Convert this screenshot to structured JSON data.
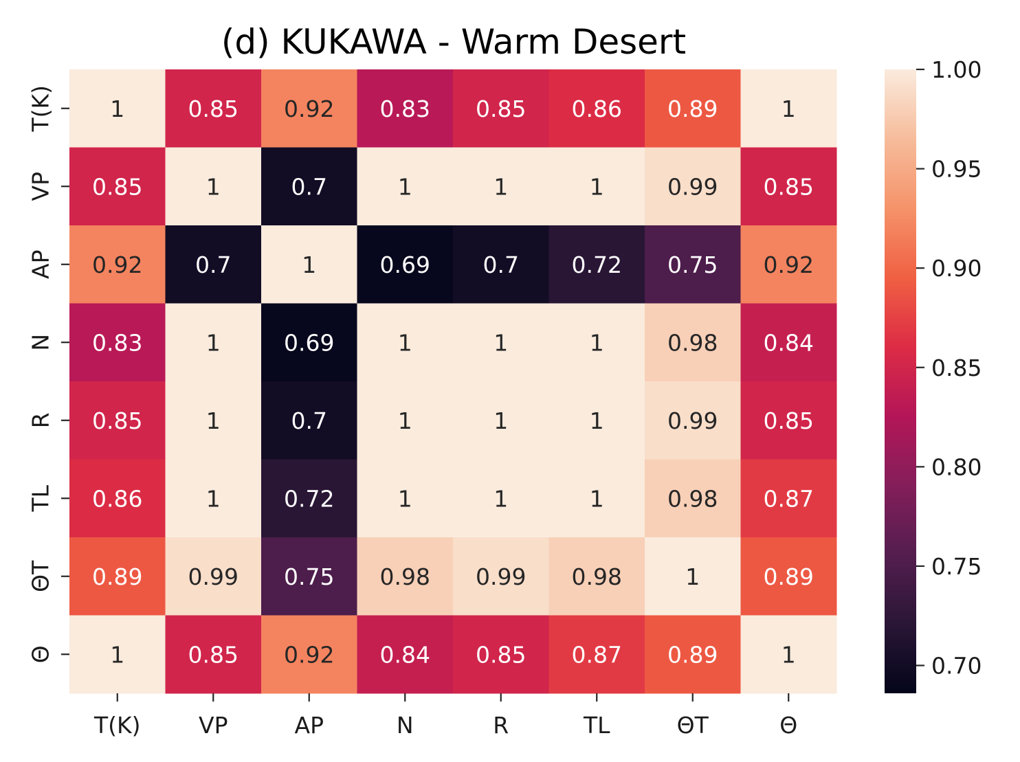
{
  "chart_data": {
    "type": "heatmap",
    "title": "(d) KUKAWA - Warm Desert",
    "xlabel": "",
    "ylabel": "",
    "x_categories": [
      "T(K)",
      "VP",
      "AP",
      "N",
      "R",
      "TL",
      "ΘT",
      "Θ"
    ],
    "y_categories": [
      "T(K)",
      "VP",
      "AP",
      "N",
      "R",
      "TL",
      "ΘT",
      "Θ"
    ],
    "values": [
      [
        1.0,
        0.85,
        0.92,
        0.83,
        0.85,
        0.86,
        0.89,
        1.0
      ],
      [
        0.85,
        1.0,
        0.7,
        1.0,
        1.0,
        1.0,
        0.99,
        0.85
      ],
      [
        0.92,
        0.7,
        1.0,
        0.69,
        0.7,
        0.72,
        0.75,
        0.92
      ],
      [
        0.83,
        1.0,
        0.69,
        1.0,
        1.0,
        1.0,
        0.98,
        0.84
      ],
      [
        0.85,
        1.0,
        0.7,
        1.0,
        1.0,
        1.0,
        0.99,
        0.85
      ],
      [
        0.86,
        1.0,
        0.72,
        1.0,
        1.0,
        1.0,
        0.98,
        0.87
      ],
      [
        0.89,
        0.99,
        0.75,
        0.98,
        0.99,
        0.98,
        1.0,
        0.89
      ],
      [
        1.0,
        0.85,
        0.92,
        0.84,
        0.85,
        0.87,
        0.89,
        1.0
      ]
    ],
    "annotations": [
      [
        "1",
        "0.85",
        "0.92",
        "0.83",
        "0.85",
        "0.86",
        "0.89",
        "1"
      ],
      [
        "0.85",
        "1",
        "0.7",
        "1",
        "1",
        "1",
        "0.99",
        "0.85"
      ],
      [
        "0.92",
        "0.7",
        "1",
        "0.69",
        "0.7",
        "0.72",
        "0.75",
        "0.92"
      ],
      [
        "0.83",
        "1",
        "0.69",
        "1",
        "1",
        "1",
        "0.98",
        "0.84"
      ],
      [
        "0.85",
        "1",
        "0.7",
        "1",
        "1",
        "1",
        "0.99",
        "0.85"
      ],
      [
        "0.86",
        "1",
        "0.72",
        "1",
        "1",
        "1",
        "0.98",
        "0.87"
      ],
      [
        "0.89",
        "0.99",
        "0.75",
        "0.98",
        "0.99",
        "0.98",
        "1",
        "0.89"
      ],
      [
        "1",
        "0.85",
        "0.92",
        "0.84",
        "0.85",
        "0.87",
        "0.89",
        "1"
      ]
    ],
    "colorbar": {
      "range": [
        0.686,
        1.0
      ],
      "ticks": [
        0.7,
        0.75,
        0.8,
        0.85,
        0.9,
        0.95,
        1.0
      ],
      "tick_labels": [
        "0.70",
        "0.75",
        "0.80",
        "0.85",
        "0.90",
        "0.95",
        "1.00"
      ],
      "colormap": "rocket",
      "colormap_stops": [
        "#03051a",
        "#2a1636",
        "#541e4f",
        "#841e5a",
        "#b41658",
        "#dd2c45",
        "#f06043",
        "#f5936a",
        "#f6bc9b",
        "#faebdd"
      ]
    },
    "grid": false,
    "legend": "colorbar-right"
  }
}
